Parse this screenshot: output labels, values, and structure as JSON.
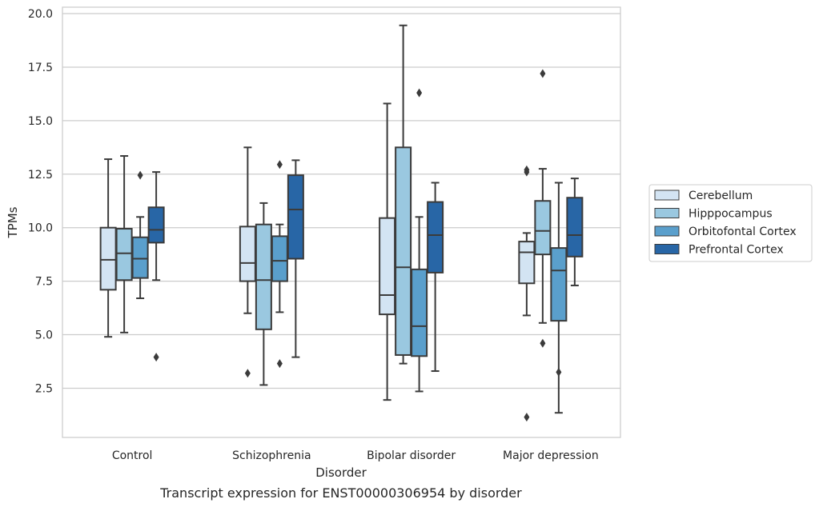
{
  "chart_data": {
    "type": "box",
    "caption": "Transcript expression for ENST00000306954 by disorder",
    "xlabel": "Disorder",
    "ylabel": "TPMs",
    "ylim": [
      0.2,
      20.3
    ],
    "yticks": [
      "2.5",
      "5.0",
      "7.5",
      "10.0",
      "12.5",
      "15.0",
      "17.5",
      "20.0"
    ],
    "grid": "horizontal",
    "legend_position": "right",
    "categories": [
      "Control",
      "Schizophrenia",
      "Bipolar disorder",
      "Major depression"
    ],
    "series": [
      {
        "name": "Cerebellum",
        "color": "#d3e4f3",
        "boxes": [
          {
            "whisker_low": 4.9,
            "q1": 7.1,
            "median": 8.5,
            "q3": 10.0,
            "whisker_high": 13.2,
            "outliers": []
          },
          {
            "whisker_low": 6.0,
            "q1": 7.5,
            "median": 8.35,
            "q3": 10.05,
            "whisker_high": 13.75,
            "outliers": [
              3.2
            ]
          },
          {
            "whisker_low": 1.95,
            "q1": 5.95,
            "median": 6.85,
            "q3": 10.45,
            "whisker_high": 15.8,
            "outliers": []
          },
          {
            "whisker_low": 5.9,
            "q1": 7.4,
            "median": 8.85,
            "q3": 9.35,
            "whisker_high": 9.75,
            "outliers": [
              12.6,
              12.7,
              1.15
            ]
          }
        ]
      },
      {
        "name": "Hipppocampus",
        "color": "#9ac8e0",
        "boxes": [
          {
            "whisker_low": 5.1,
            "q1": 7.55,
            "median": 8.8,
            "q3": 9.95,
            "whisker_high": 13.35,
            "outliers": []
          },
          {
            "whisker_low": 2.65,
            "q1": 5.25,
            "median": 7.55,
            "q3": 10.15,
            "whisker_high": 11.15,
            "outliers": []
          },
          {
            "whisker_low": 3.65,
            "q1": 4.05,
            "median": 8.15,
            "q3": 13.75,
            "whisker_high": 19.45,
            "outliers": []
          },
          {
            "whisker_low": 5.55,
            "q1": 8.75,
            "median": 9.85,
            "q3": 11.25,
            "whisker_high": 12.75,
            "outliers": [
              17.2,
              4.6
            ]
          }
        ]
      },
      {
        "name": "Orbitofontal Cortex",
        "color": "#5a9fcc",
        "boxes": [
          {
            "whisker_low": 6.7,
            "q1": 7.65,
            "median": 8.55,
            "q3": 9.55,
            "whisker_high": 10.5,
            "outliers": [
              12.45
            ]
          },
          {
            "whisker_low": 6.05,
            "q1": 7.5,
            "median": 8.45,
            "q3": 9.6,
            "whisker_high": 10.15,
            "outliers": [
              12.95,
              3.65
            ]
          },
          {
            "whisker_low": 2.35,
            "q1": 4.0,
            "median": 5.4,
            "q3": 8.05,
            "whisker_high": 10.5,
            "outliers": [
              16.3
            ]
          },
          {
            "whisker_low": 1.35,
            "q1": 5.65,
            "median": 8.0,
            "q3": 9.05,
            "whisker_high": 12.1,
            "outliers": [
              3.25
            ]
          }
        ]
      },
      {
        "name": "Prefrontal Cortex",
        "color": "#2866a6",
        "boxes": [
          {
            "whisker_low": 7.55,
            "q1": 9.3,
            "median": 9.9,
            "q3": 10.95,
            "whisker_high": 12.6,
            "outliers": [
              3.95
            ]
          },
          {
            "whisker_low": 3.95,
            "q1": 8.55,
            "median": 10.85,
            "q3": 12.45,
            "whisker_high": 13.15,
            "outliers": []
          },
          {
            "whisker_low": 3.3,
            "q1": 7.9,
            "median": 9.65,
            "q3": 11.2,
            "whisker_high": 12.1,
            "outliers": []
          },
          {
            "whisker_low": 7.3,
            "q1": 8.65,
            "median": 9.65,
            "q3": 11.4,
            "whisker_high": 12.3,
            "outliers": []
          }
        ]
      }
    ]
  }
}
